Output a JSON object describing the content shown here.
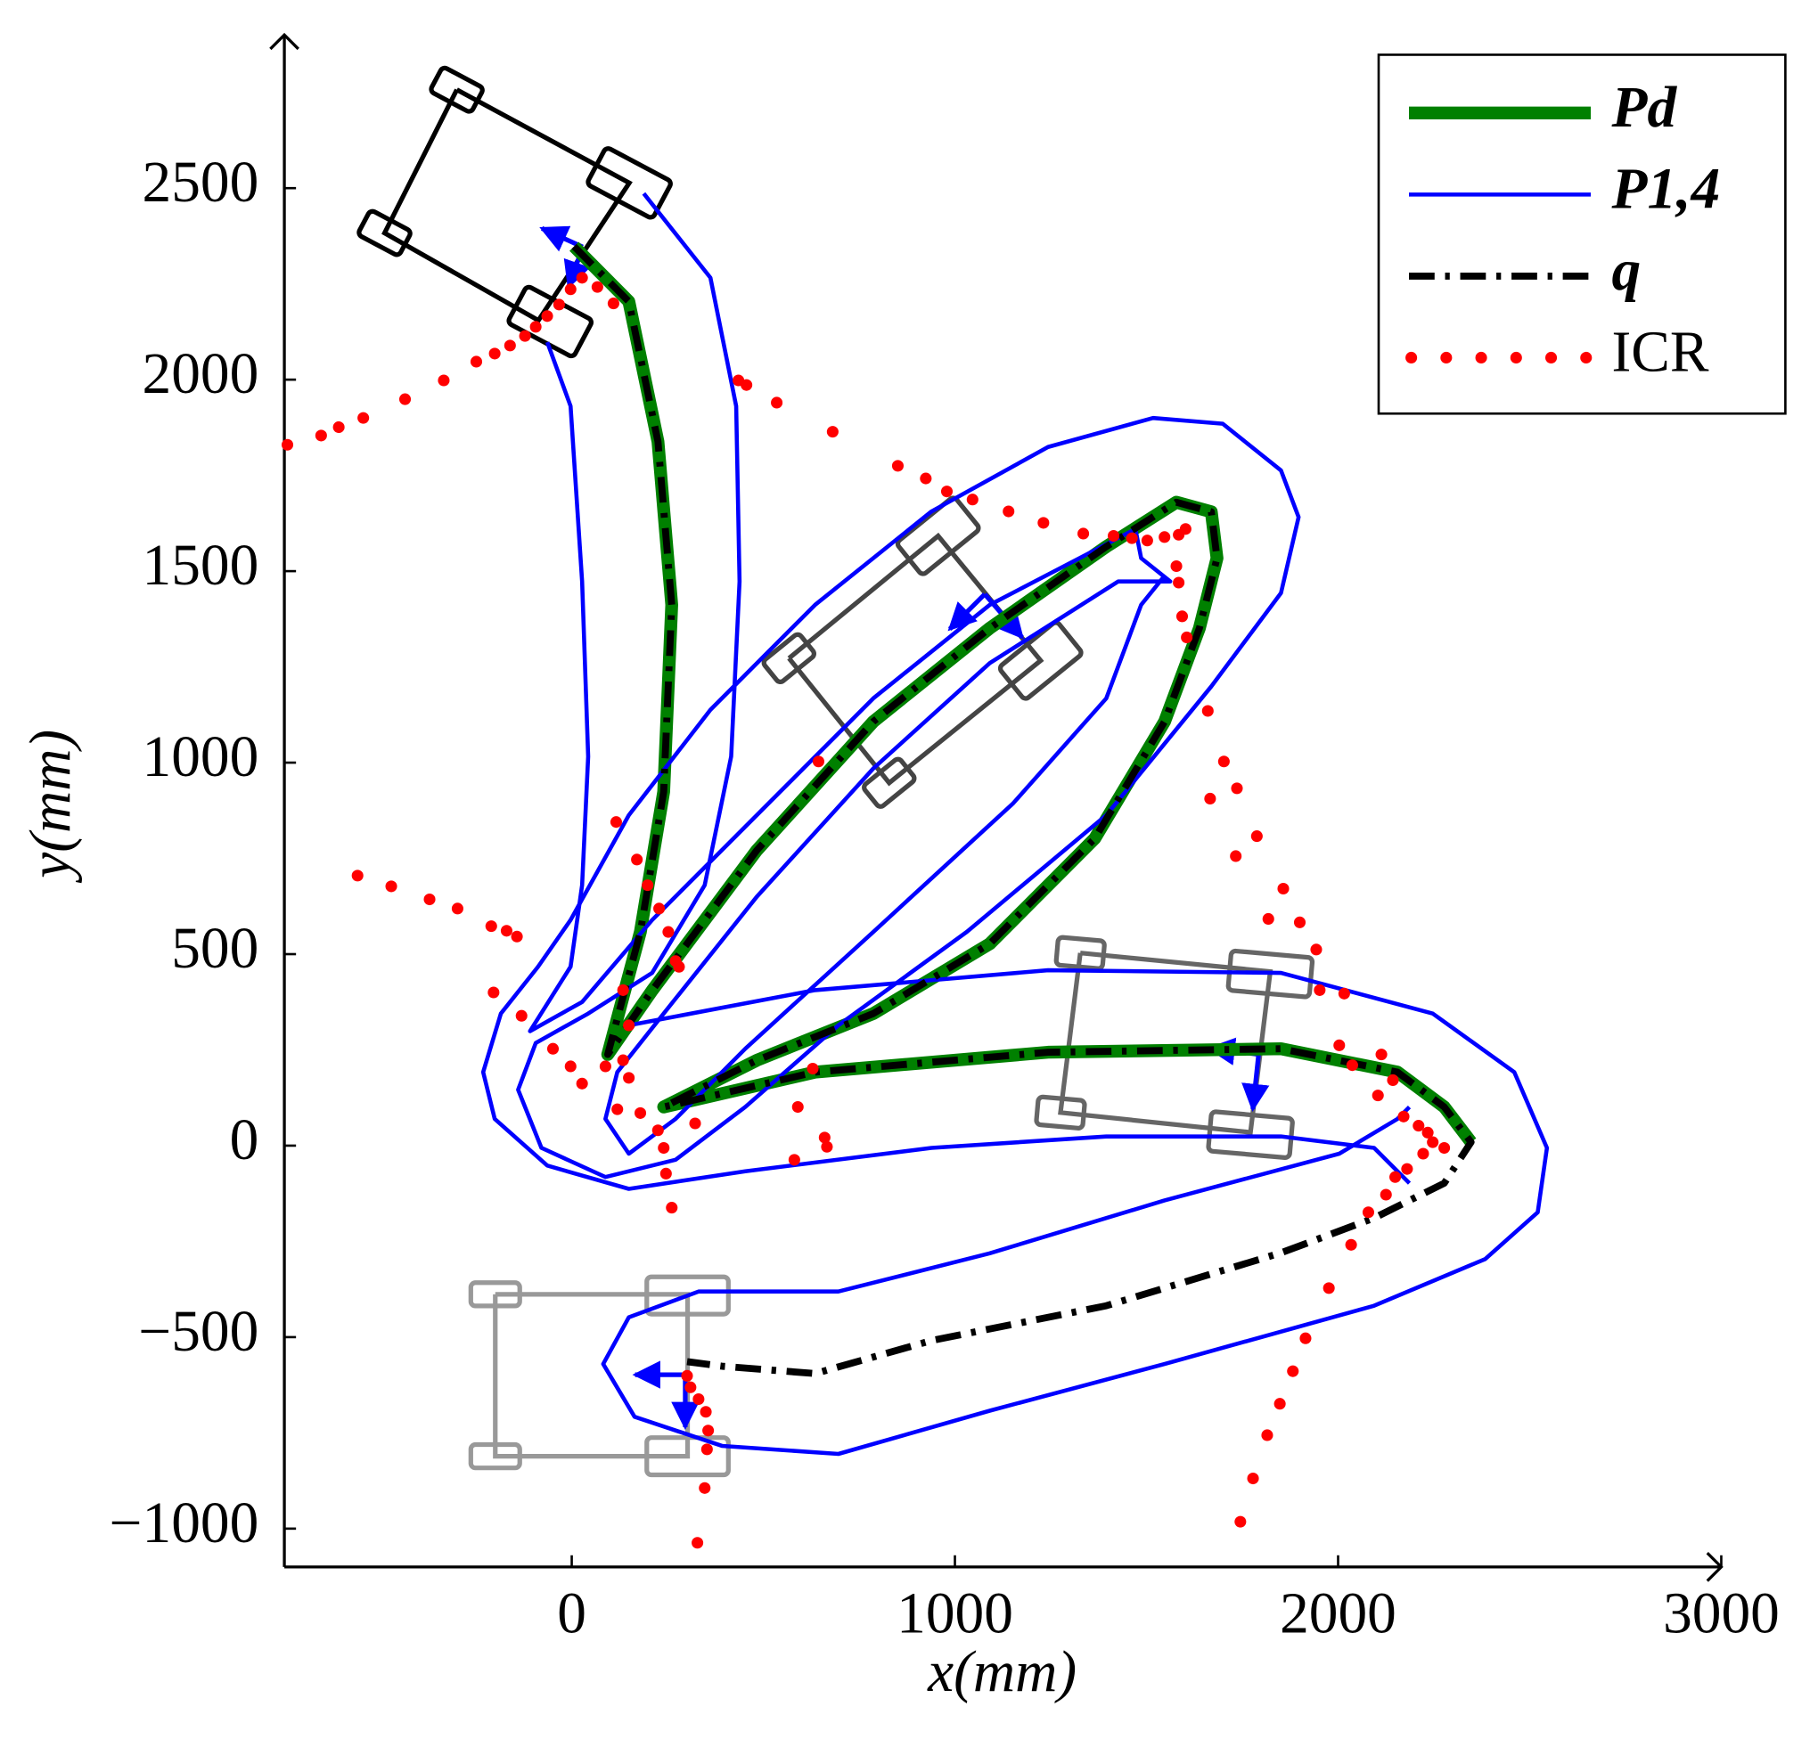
{
  "chart_data": {
    "type": "line",
    "xlabel": "x(mm)",
    "ylabel": "y(mm)",
    "xlim": [
      -750,
      3000
    ],
    "ylim": [
      -1100,
      2900
    ],
    "xticks": [
      0,
      1000,
      2000,
      3000
    ],
    "yticks": [
      {
        "value": -1000,
        "label": "−1000"
      },
      {
        "value": -500,
        "label": "−500"
      },
      0,
      500,
      1000,
      1500,
      2000,
      2500
    ],
    "grid": false,
    "legend": "upper right",
    "series": [
      {
        "name": "Pd",
        "color": "#008000",
        "mode": "lines",
        "dash": "solid",
        "x": [
          6,
          149,
          225,
          261,
          240,
          179,
          94,
          210,
          483,
          787,
          1091,
          1395,
          1578,
          1669,
          1684,
          1638,
          1547,
          1365,
          1091,
          787,
          483,
          240,
          635,
          1243,
          1851,
          2155,
          2277,
          2347
        ],
        "values": [
          2348,
          2204,
          1838,
          1412,
          924,
          558,
          238,
          405,
          771,
          1107,
          1351,
          1564,
          1680,
          1655,
          1534,
          1351,
          1107,
          802,
          527,
          345,
          223,
          101,
          192,
          244,
          253,
          192,
          101,
          9
        ]
      },
      {
        "name": "P1,4",
        "color": "#0000ff",
        "mode": "lines",
        "dash": "solid",
        "x": [
          188,
          362,
          429,
          438,
          416,
          347,
          210,
          43,
          -94,
          -140,
          -79,
          88,
          271,
          453,
          696,
          1031,
          1395,
          1669,
          1851,
          1897,
          1851,
          1699,
          1517,
          1243,
          939,
          635,
          362,
          149,
          -3,
          -88,
          -185,
          -231,
          -201,
          -64,
          149,
          453,
          939,
          1395,
          1851,
          2094,
          2186,
          null,
          -64,
          -3,
          27,
          43,
          27,
          -3,
          -109,
          27,
          210,
          483,
          787,
          1091,
          1471,
          1486,
          1562,
          1426,
          1091,
          787,
          483,
          240,
          119,
          88,
          149,
          271,
          453,
          787,
          1152,
          1395,
          1486,
          1547,
          null,
          149,
          635,
          1243,
          1851,
          2247,
          2460,
          2545,
          2521,
          2384,
          2094,
          1547,
          1091,
          696,
          392,
          164,
          82,
          149,
          331,
          696,
          1091,
          1547,
          2003,
          2155,
          2186
        ],
        "values": [
          2486,
          2266,
          1931,
          1473,
          1016,
          680,
          451,
          345,
          268,
          146,
          -6,
          -82,
          -37,
          101,
          314,
          558,
          863,
          1199,
          1443,
          1641,
          1763,
          1885,
          1900,
          1824,
          1656,
          1412,
          1138,
          863,
          589,
          467,
          345,
          192,
          70,
          -52,
          -113,
          -67,
          -6,
          24,
          24,
          -6,
          -98,
          null,
          2098,
          1931,
          1473,
          1016,
          680,
          467,
          299,
          375,
          589,
          863,
          1168,
          1412,
          1610,
          1534,
          1473,
          1473,
          1260,
          985,
          650,
          345,
          192,
          70,
          -21,
          70,
          253,
          558,
          894,
          1168,
          1412,
          1488,
          null,
          314,
          406,
          458,
          451,
          345,
          192,
          -6,
          -174,
          -296,
          -418,
          -570,
          -692,
          -805,
          -784,
          -708,
          -570,
          -448,
          -381,
          -381,
          -281,
          -143,
          -21,
          70,
          101
        ]
      },
      {
        "name": "q",
        "color": "#000000",
        "mode": "lines",
        "dash": "dash-dot",
        "x": [
          6,
          149,
          225,
          261,
          240,
          179,
          94,
          210,
          483,
          787,
          1091,
          1395,
          1578,
          1669,
          1684,
          1638,
          1547,
          1365,
          1091,
          787,
          483,
          240,
          635,
          1243,
          1851,
          2155,
          2277,
          2347,
          2277,
          2094,
          1851,
          1395,
          939,
          635,
          392,
          301
        ],
        "values": [
          2348,
          2204,
          1838,
          1412,
          924,
          558,
          238,
          405,
          771,
          1107,
          1351,
          1564,
          1680,
          1655,
          1534,
          1351,
          1107,
          802,
          527,
          345,
          223,
          101,
          192,
          244,
          253,
          192,
          101,
          9,
          -98,
          -189,
          -280,
          -418,
          -509,
          -595,
          -576,
          -564
        ]
      },
      {
        "name": "ICR",
        "color": "#ff0000",
        "mode": "markers",
        "dash": "dotted",
        "x": [
          -742,
          -654,
          -608,
          -544,
          -435,
          -334,
          -249,
          -201,
          -161,
          -122,
          -94,
          -64,
          -33,
          -3,
          27,
          67,
          109,
          435,
          456,
          535,
          681,
          851,
          924,
          979,
          1046,
          1140,
          1231,
          1335,
          1414,
          1462,
          1502,
          1547,
          1584,
          1602,
          1578,
          1584,
          1593,
          1605,
          1660,
          1702,
          1736,
          1666,
          1788,
          1733,
          1857,
          1818,
          1900,
          1943,
          1952,
          2016,
          2003,
          2113,
          2037,
          2143,
          2104,
          2171,
          2210,
          2234,
          2247,
          2277,
          2222,
          2180,
          2149,
          2125,
          2079,
          2034,
          1976,
          1915,
          1882,
          1848,
          1815,
          1778,
          1745,
          -559,
          -471,
          -371,
          -298,
          -210,
          -170,
          -143,
          -204,
          -131,
          -49,
          -3,
          27,
          88,
          134,
          149,
          119,
          179,
          225,
          240,
          246,
          261,
          322,
          116,
          170,
          198,
          228,
          252,
          271,
          280,
          134,
          149,
          590,
          629,
          644,
          660,
          666,
          581,
          301,
          310,
          331,
          350,
          356,
          353,
          347,
          328
        ],
        "values": [
          1830,
          1854,
          1876,
          1900,
          1949,
          1998,
          2047,
          2068,
          2089,
          2114,
          2138,
          2166,
          2196,
          2236,
          2266,
          2242,
          2199,
          1998,
          1986,
          1940,
          1864,
          1775,
          1742,
          1708,
          1687,
          1656,
          1626,
          1598,
          1592,
          1586,
          1580,
          1589,
          1595,
          1610,
          1513,
          1470,
          1382,
          1327,
          1135,
          1003,
          933,
          906,
          808,
          756,
          671,
          592,
          583,
          512,
          406,
          397,
          262,
          238,
          210,
          171,
          131,
          76,
          52,
          34,
          9,
          -6,
          -21,
          -61,
          -82,
          -128,
          -174,
          -259,
          -372,
          -503,
          -589,
          -674,
          -756,
          -869,
          -982,
          705,
          677,
          643,
          619,
          573,
          561,
          546,
          400,
          339,
          253,
          207,
          162,
          207,
          223,
          177,
          95,
          85,
          40,
          -6,
          -73,
          -162,
          58,
          845,
          747,
          680,
          619,
          558,
          482,
          467,
          406,
          314,
          101,
          201,
          1003,
          21,
          -3,
          -37,
          -601,
          -631,
          -662,
          -695,
          -744,
          -793,
          -894,
          -1037
        ]
      }
    ]
  }
}
